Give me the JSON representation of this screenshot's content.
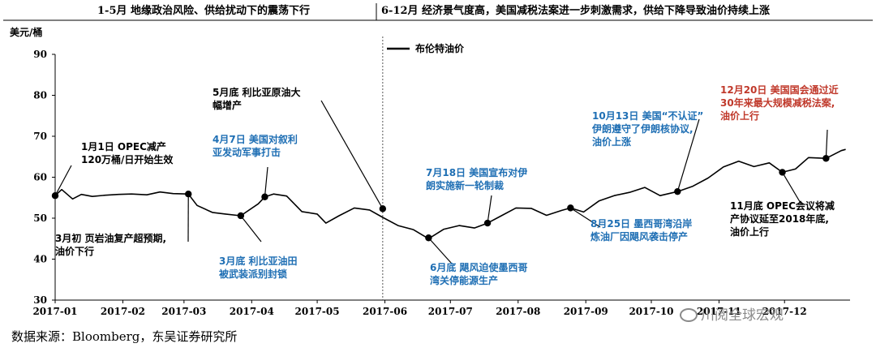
{
  "chart_data": {
    "type": "line",
    "header_left": "1-5月  地缘政治风险、供给扰动下的震荡下行",
    "header_right": "6-12月  经济景气度高，美国减税法案进一步刺激需求，供给下降导致油价持续上涨",
    "ylabel": "美元/桶",
    "ylim": [
      30,
      90
    ],
    "yticks": [
      30,
      40,
      50,
      60,
      70,
      80,
      90
    ],
    "xtick_labels": [
      "2017-01",
      "2017-02",
      "2017-03",
      "2017-04",
      "2017-05",
      "2017-06",
      "2017-07",
      "2017-08",
      "2017-09",
      "2017-10",
      "2017-11",
      "2017-12"
    ],
    "grid": false,
    "legend": {
      "placement": "top-center",
      "entries": [
        "布伦特油价"
      ]
    },
    "series": [
      {
        "name": "布伦特油价",
        "color": "#000000",
        "x": [
          "2017-01-01",
          "2017-01-04",
          "2017-01-09",
          "2017-01-13",
          "2017-01-18",
          "2017-01-24",
          "2017-01-30",
          "2017-02-05",
          "2017-02-12",
          "2017-02-18",
          "2017-02-24",
          "2017-03-03",
          "2017-03-07",
          "2017-03-14",
          "2017-03-20",
          "2017-03-27",
          "2017-04-04",
          "2017-04-07",
          "2017-04-11",
          "2017-04-17",
          "2017-04-24",
          "2017-05-01",
          "2017-05-05",
          "2017-05-11",
          "2017-05-18",
          "2017-05-25",
          "2017-05-31",
          "2017-06-07",
          "2017-06-14",
          "2017-06-21",
          "2017-06-28",
          "2017-07-05",
          "2017-07-12",
          "2017-07-18",
          "2017-07-24",
          "2017-07-31",
          "2017-08-07",
          "2017-08-14",
          "2017-08-21",
          "2017-08-25",
          "2017-08-31",
          "2017-09-07",
          "2017-09-14",
          "2017-09-21",
          "2017-09-28",
          "2017-10-05",
          "2017-10-13",
          "2017-10-20",
          "2017-10-27",
          "2017-11-03",
          "2017-11-10",
          "2017-11-17",
          "2017-11-24",
          "2017-11-30",
          "2017-12-06",
          "2017-12-12",
          "2017-12-20",
          "2017-12-27",
          "2017-12-29"
        ],
        "values": [
          55.5,
          57.0,
          54.7,
          55.8,
          55.3,
          55.6,
          55.8,
          55.9,
          55.7,
          56.4,
          56.0,
          55.9,
          53.1,
          51.4,
          51.0,
          50.6,
          53.5,
          55.2,
          55.9,
          55.4,
          51.6,
          51.0,
          48.8,
          50.6,
          52.5,
          52.0,
          50.2,
          48.2,
          47.2,
          45.0,
          47.3,
          48.2,
          47.6,
          48.8,
          50.5,
          52.5,
          52.4,
          50.7,
          51.9,
          52.5,
          51.5,
          54.2,
          55.5,
          56.3,
          57.5,
          55.5,
          56.5,
          57.8,
          59.8,
          62.5,
          63.9,
          62.6,
          63.5,
          61.2,
          62.0,
          64.8,
          64.6,
          66.5,
          66.8
        ]
      }
    ],
    "annotations": [
      {
        "text": [
          "1月1日  OPEC减产",
          "120万桶/日开始生效"
        ],
        "color": "#000000",
        "point": [
          "2017-01-01",
          55.5
        ]
      },
      {
        "text": [
          "3月初  页岩油复产超预期,",
          "油价下行"
        ],
        "color": "#000000",
        "point": [
          "2017-03-03",
          55.9
        ]
      },
      {
        "text": [
          "3月底  利比亚油田",
          "被武装派别封锁"
        ],
        "color": "#1f6fb4",
        "point": [
          "2017-03-27",
          50.6
        ]
      },
      {
        "text": [
          "4月7日  美国对叙利",
          "亚发动军事打击"
        ],
        "color": "#1f6fb4",
        "point": [
          "2017-04-07",
          55.2
        ]
      },
      {
        "text": [
          "5月底  利比亚原油大",
          "幅增产"
        ],
        "color": "#000000",
        "point": [
          "2017-05-31",
          52.3
        ]
      },
      {
        "text": [
          "6月底  飓风迫使墨西哥",
          "湾关停能源生产"
        ],
        "color": "#1f6fb4",
        "point": [
          "2017-06-21",
          45.2
        ]
      },
      {
        "text": [
          "7月18日  美国宣布对伊",
          "朗实施新一轮制裁"
        ],
        "color": "#1f6fb4",
        "point": [
          "2017-07-18",
          48.8
        ]
      },
      {
        "text": [
          "8月25日  墨西哥湾沿岸",
          "炼油厂因飓风袭击停产"
        ],
        "color": "#1f6fb4",
        "point": [
          "2017-08-25",
          52.5
        ]
      },
      {
        "text": [
          "10月13日  美国“不认证”",
          "伊朗遵守了伊朗核协议,",
          "油价上涨"
        ],
        "color": "#1f6fb4",
        "point": [
          "2017-10-13",
          56.5
        ]
      },
      {
        "text": [
          "11月底  OPEC会议将减",
          "产协议延至2018年底,",
          "油价上行"
        ],
        "color": "#000000",
        "point": [
          "2017-11-30",
          61.2
        ]
      },
      {
        "text": [
          "12月20日  美国国会通过近",
          "30年来最大规模减税法案,",
          "油价上行"
        ],
        "color": "#c0392b",
        "point": [
          "2017-12-20",
          64.6
        ]
      }
    ]
  },
  "source_text": "数据来源：Bloomberg，东吴证券研究所",
  "watermark_text": "川阅全球宏观"
}
